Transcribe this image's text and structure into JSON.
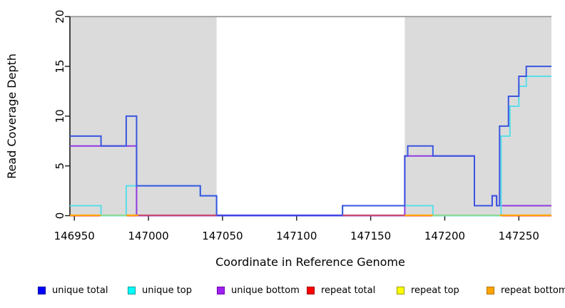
{
  "chart_data": {
    "type": "line",
    "subtype": "step-coverage",
    "title": "",
    "xlabel": "Coordinate in Reference Genome",
    "ylabel": "Read Coverage Depth",
    "xlim": [
      146947,
      147272
    ],
    "ylim": [
      0,
      20
    ],
    "x_ticks": [
      146950,
      147000,
      147050,
      147100,
      147150,
      147200,
      147250
    ],
    "x_tick_labels": [
      "146950",
      "147000",
      "147050",
      "147100",
      "147150",
      "147200",
      "147250"
    ],
    "y_ticks": [
      0,
      5,
      10,
      15,
      20
    ],
    "y_tick_labels": [
      "0",
      "5",
      "10",
      "15",
      "20"
    ],
    "grid": false,
    "legend_position": "bottom",
    "shaded_regions": [
      {
        "x0": 146947,
        "x1": 147046,
        "color": "#DBDBDB",
        "name": "repeat-region-1"
      },
      {
        "x0": 147173,
        "x1": 147272,
        "color": "#DBDBDB",
        "name": "repeat-region-2"
      }
    ],
    "frame": {
      "top_border_color": "#909090",
      "axis_color": "#1a1a1a"
    },
    "series": [
      {
        "name": "unique total",
        "color": "#3A55E0",
        "step_points": [
          [
            146947,
            8
          ],
          [
            146968,
            7
          ],
          [
            146985,
            10
          ],
          [
            146992,
            3
          ],
          [
            147035,
            2
          ],
          [
            147046,
            0
          ],
          [
            147131,
            1
          ],
          [
            147173,
            6
          ],
          [
            147175,
            7
          ],
          [
            147192,
            6
          ],
          [
            147220,
            1
          ],
          [
            147232,
            2
          ],
          [
            147235,
            1
          ],
          [
            147237,
            9
          ],
          [
            147243,
            12
          ],
          [
            147250,
            14
          ],
          [
            147255,
            15
          ],
          [
            147272,
            15
          ]
        ]
      },
      {
        "name": "unique top",
        "color": "#58DEE8",
        "step_points": [
          [
            146947,
            1
          ],
          [
            146968,
            0
          ],
          [
            146985,
            3
          ],
          [
            147035,
            2
          ],
          [
            147046,
            0
          ],
          [
            147131,
            1
          ],
          [
            147192,
            0
          ],
          [
            147238,
            8
          ],
          [
            147244,
            11
          ],
          [
            147250,
            13
          ],
          [
            147255,
            14
          ],
          [
            147272,
            14
          ]
        ]
      },
      {
        "name": "unique bottom",
        "color": "#9138E2",
        "step_points": [
          [
            146947,
            7
          ],
          [
            146992,
            0
          ],
          [
            147173,
            6
          ],
          [
            147220,
            1
          ],
          [
            147232,
            2
          ],
          [
            147235,
            1
          ],
          [
            147272,
            1
          ]
        ]
      },
      {
        "name": "repeat total",
        "color": "#CC2244",
        "step_points": [
          [
            146947,
            0
          ],
          [
            147272,
            0
          ]
        ]
      },
      {
        "name": "repeat top",
        "color": "#FFFF00",
        "step_points": [
          [
            146947,
            0
          ],
          [
            147272,
            0
          ]
        ]
      },
      {
        "name": "repeat bottom",
        "color": "#FFA500",
        "step_points": [
          [
            146947,
            0
          ],
          [
            147272,
            0
          ]
        ]
      }
    ],
    "zero_line_segments": [
      {
        "x0": 146947,
        "x1": 146968,
        "color": "#FFA500"
      },
      {
        "x0": 146968,
        "x1": 146985,
        "color": "#8FDA96"
      },
      {
        "x0": 146985,
        "x1": 146993,
        "color": "#FFA500"
      },
      {
        "x0": 146993,
        "x1": 147046,
        "color": "#C84B70"
      },
      {
        "x0": 147046,
        "x1": 147131,
        "color": "#4444E4"
      },
      {
        "x0": 147131,
        "x1": 147173,
        "color": "#C84B70"
      },
      {
        "x0": 147173,
        "x1": 147192,
        "color": "#FFA500"
      },
      {
        "x0": 147192,
        "x1": 147237,
        "color": "#8FDA96"
      },
      {
        "x0": 147237,
        "x1": 147272,
        "color": "#FFA500"
      }
    ]
  },
  "legend": {
    "items": [
      {
        "label": "unique total",
        "fill": "#0000FF",
        "border": "#00009B"
      },
      {
        "label": "unique top",
        "fill": "#00FFFF",
        "border": "#009B9B"
      },
      {
        "label": "unique bottom",
        "fill": "#A020F0",
        "border": "#6B00B0"
      },
      {
        "label": "repeat total",
        "fill": "#FF0000",
        "border": "#9B0000"
      },
      {
        "label": "repeat top",
        "fill": "#FFFF00",
        "border": "#9B9B00"
      },
      {
        "label": "repeat bottom",
        "fill": "#FFA500",
        "border": "#B07000"
      }
    ]
  }
}
